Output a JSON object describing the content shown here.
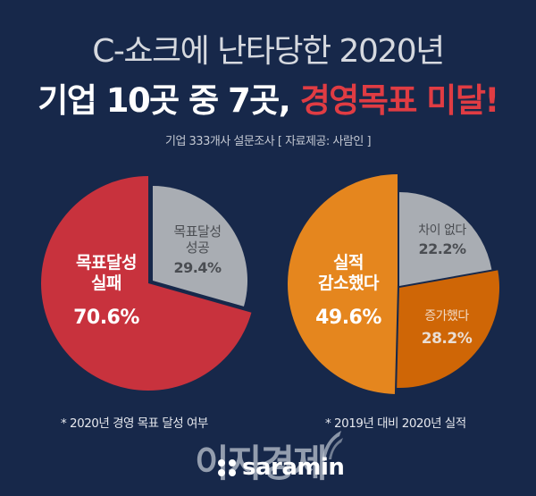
{
  "header": {
    "title_line1": "C-쇼크에 난타당한 2020년",
    "title_line2_white": "기업 10곳 중 7곳, ",
    "title_line2_red": "경영목표 미달!",
    "subtitle": "기업 333개사 설문조사 [ 자료제공: 사람인 ]"
  },
  "colors": {
    "background": "#17284a",
    "red": "#c8323d",
    "gray": "#a9adb3",
    "orange": "#e5861e",
    "dark_orange": "#cf6606",
    "accent_title": "#e03c43"
  },
  "chart_data": [
    {
      "type": "pie",
      "title": "2020년 경영 목표 달성 여부",
      "caption": "* 2020년 경영 목표 달성 여부",
      "categories": [
        "목표달성 실패",
        "목표달성 성공"
      ],
      "values": [
        70.6,
        29.4
      ],
      "colors": [
        "#c8323d",
        "#a9adb3"
      ],
      "labels": [
        {
          "line1": "목표달성",
          "line2": "실패",
          "pct": "70.6%"
        },
        {
          "line1": "목표달성",
          "line2": "성공",
          "pct": "29.4%"
        }
      ]
    },
    {
      "type": "pie",
      "title": "2019년 대비 2020년 실적",
      "caption": "* 2019년 대비 2020년 실적",
      "categories": [
        "실적 감소했다",
        "차이 없다",
        "증가했다"
      ],
      "values": [
        49.6,
        22.2,
        28.2
      ],
      "colors": [
        "#e5861e",
        "#a9adb3",
        "#cf6606"
      ],
      "labels": [
        {
          "line1": "실적",
          "line2": "감소했다",
          "pct": "49.6%"
        },
        {
          "line1": "차이 없다",
          "pct": "22.2%"
        },
        {
          "line1": "증가했다",
          "pct": "28.2%"
        }
      ]
    }
  ],
  "footer": {
    "watermark": "이지경제",
    "brand": "saramin"
  }
}
